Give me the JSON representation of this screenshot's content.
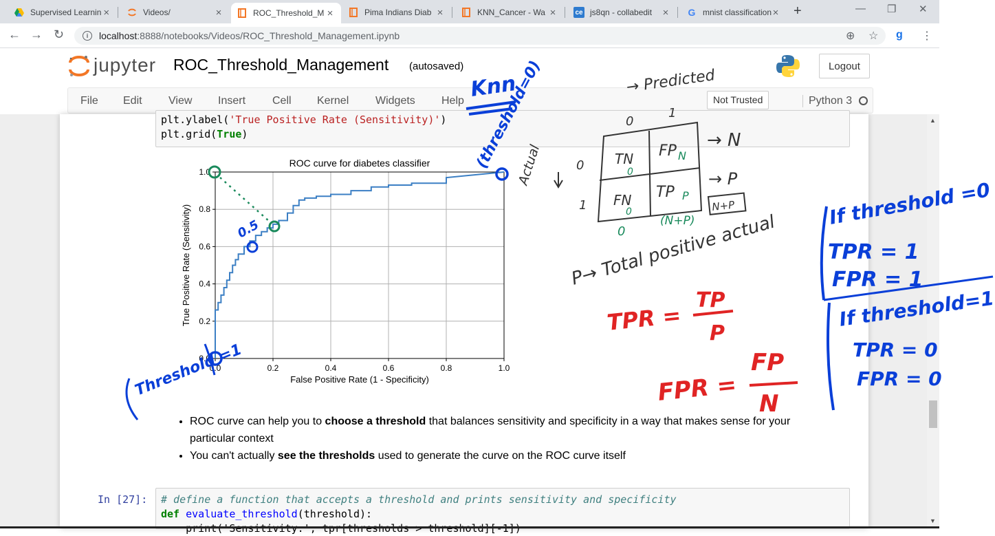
{
  "browser": {
    "tabs": [
      {
        "title": "Supervised Learnin",
        "icon": "google-drive-icon",
        "active": false
      },
      {
        "title": "Videos/",
        "icon": "jupyter-icon",
        "active": false
      },
      {
        "title": "ROC_Threshold_M",
        "icon": "notebook-icon",
        "active": true
      },
      {
        "title": "Pima Indians Diab",
        "icon": "notebook-icon",
        "active": false
      },
      {
        "title": "KNN_Cancer - Wa",
        "icon": "notebook-icon",
        "active": false
      },
      {
        "title": "js8qn - collabedit",
        "icon": "ce-icon",
        "active": false
      },
      {
        "title": "mnist classification",
        "icon": "google-icon",
        "active": false
      }
    ],
    "url_host": "localhost",
    "url_path": ":8888/notebooks/Videos/ROC_Threshold_Management.ipynb"
  },
  "jupyter": {
    "logo_text": "jupyter",
    "notebook_name": "ROC_Threshold_Management",
    "save_status": "(autosaved)",
    "logout_label": "Logout",
    "menu": [
      "File",
      "Edit",
      "View",
      "Insert",
      "Cell",
      "Kernel",
      "Widgets",
      "Help"
    ],
    "trust_label": "Not Trusted",
    "kernel_name": "Python 3"
  },
  "cells": {
    "code_top_line1_pre": "plt.ylabel(",
    "code_top_line1_str": "'True Positive Rate (Sensitivity)'",
    "code_top_line1_post": ")",
    "code_top_line2_pre": "plt.grid(",
    "code_top_line2_kw": "True",
    "code_top_line2_post": ")",
    "bullets": [
      {
        "pre": "ROC curve can help you to ",
        "bold": "choose a threshold",
        "post": " that balances sensitivity and specificity in a way that makes sense for your particular context"
      },
      {
        "pre": "You can't actually ",
        "bold": "see the thresholds",
        "post": " used to generate the curve on the ROC curve itself"
      }
    ],
    "prompt_27": "In [27]:",
    "code_27_comment": "# define a function that accepts a threshold and prints sensitivity and specificity",
    "code_27_def": "def",
    "code_27_fn": "evaluate_threshold",
    "code_27_args": "(threshold):",
    "code_27_line3": "    print('Sensitivity:', tpr[thresholds > threshold][-1])"
  },
  "chart_data": {
    "type": "line",
    "title": "ROC curve for diabetes classifier",
    "xlabel": "False Positive Rate (1 - Specificity)",
    "ylabel": "True Positive Rate (Sensitivity)",
    "xlim": [
      0,
      1
    ],
    "ylim": [
      0,
      1
    ],
    "grid": true,
    "xticks": [
      "0.0",
      "0.2",
      "0.4",
      "0.6",
      "0.8",
      "1.0"
    ],
    "yticks": [
      "0.0",
      "0.2",
      "0.4",
      "0.6",
      "0.8",
      "1.0"
    ],
    "x": [
      0.0,
      0.0,
      0.01,
      0.01,
      0.02,
      0.02,
      0.03,
      0.03,
      0.04,
      0.04,
      0.05,
      0.05,
      0.06,
      0.06,
      0.07,
      0.07,
      0.08,
      0.08,
      0.1,
      0.1,
      0.12,
      0.12,
      0.14,
      0.14,
      0.16,
      0.16,
      0.18,
      0.18,
      0.2,
      0.2,
      0.22,
      0.22,
      0.25,
      0.25,
      0.27,
      0.27,
      0.29,
      0.29,
      0.31,
      0.31,
      0.35,
      0.35,
      0.4,
      0.4,
      0.47,
      0.47,
      0.54,
      0.54,
      0.6,
      0.6,
      0.68,
      0.68,
      0.8,
      0.8,
      1.0
    ],
    "y": [
      0.0,
      0.26,
      0.26,
      0.3,
      0.3,
      0.34,
      0.34,
      0.38,
      0.38,
      0.42,
      0.42,
      0.46,
      0.46,
      0.5,
      0.5,
      0.53,
      0.53,
      0.56,
      0.56,
      0.6,
      0.6,
      0.63,
      0.63,
      0.66,
      0.66,
      0.68,
      0.68,
      0.7,
      0.7,
      0.72,
      0.72,
      0.74,
      0.74,
      0.78,
      0.78,
      0.82,
      0.82,
      0.85,
      0.85,
      0.86,
      0.86,
      0.87,
      0.87,
      0.88,
      0.88,
      0.9,
      0.9,
      0.92,
      0.92,
      0.93,
      0.93,
      0.94,
      0.94,
      0.97,
      1.0
    ]
  },
  "annotations": {
    "knn": "Knn",
    "threshold_zero": "(threshold=0)",
    "threshold_one": "Threshold =1",
    "point_05": "0.5",
    "predicted": "→ Predicted",
    "actual": "Actual",
    "matrix_col0": "0",
    "matrix_col1": "1",
    "matrix_row0": "0",
    "matrix_row1": "1",
    "tn": "TN",
    "fp": "FP",
    "fn": "FN",
    "tp": "TP",
    "sub_tn": "0",
    "sub_fp": "N",
    "sub_fn": "0",
    "sub_tp": "P",
    "arrow_n": "→ N",
    "arrow_p": "→ P",
    "below_0": "0",
    "n_plus_p": "(N+P)",
    "n_plus_p_box": "N+P",
    "total_positive": "P→ Total positive actual",
    "tpr_formula_lhs": "TPR =",
    "tpr_num": "TP",
    "tpr_den": "P",
    "fpr_formula_lhs": "FPR =",
    "fpr_num": "FP",
    "fpr_den": "N",
    "if_t0": "If threshold =0",
    "t0_tpr": "TPR = 1",
    "t0_fpr": "FPR = 1",
    "if_t1": "If threshold=1",
    "t1_tpr": "TPR = 0",
    "t1_fpr": "FPR = 0"
  },
  "colors": {
    "annot_blue": "#0a3fd8",
    "annot_red": "#e02424",
    "annot_green": "#1a8a5c",
    "annot_gray": "#333333",
    "roc_line": "#3b7fc4"
  }
}
